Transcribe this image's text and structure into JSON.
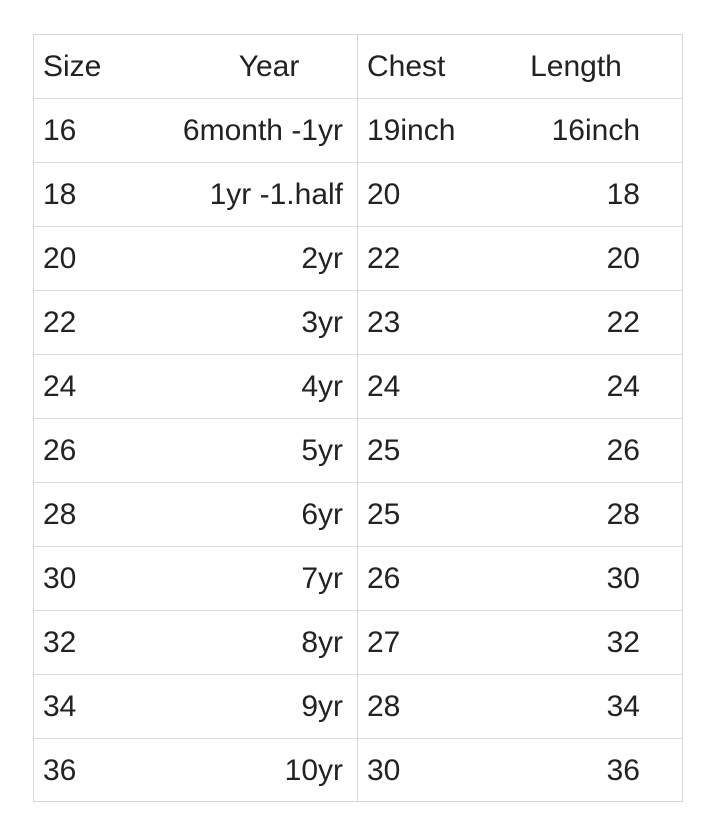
{
  "table": {
    "header": [
      "Size",
      "Year",
      "Chest",
      "Length"
    ],
    "rows": [
      [
        "16",
        "6month -1yr",
        "19inch",
        "16inch"
      ],
      [
        "18",
        "1yr -1.half",
        "20",
        "18"
      ],
      [
        "20",
        "2yr",
        "22",
        "20"
      ],
      [
        "22",
        "3yr",
        "23",
        "22"
      ],
      [
        "24",
        "4yr",
        "24",
        "24"
      ],
      [
        "26",
        "5yr",
        "25",
        "26"
      ],
      [
        "28",
        "6yr",
        "25",
        "28"
      ],
      [
        "30",
        "7yr",
        "26",
        "30"
      ],
      [
        "32",
        "8yr",
        "27",
        "32"
      ],
      [
        "34",
        "9yr",
        "28",
        "34"
      ],
      [
        "36",
        "10yr",
        "30",
        "36"
      ]
    ]
  }
}
